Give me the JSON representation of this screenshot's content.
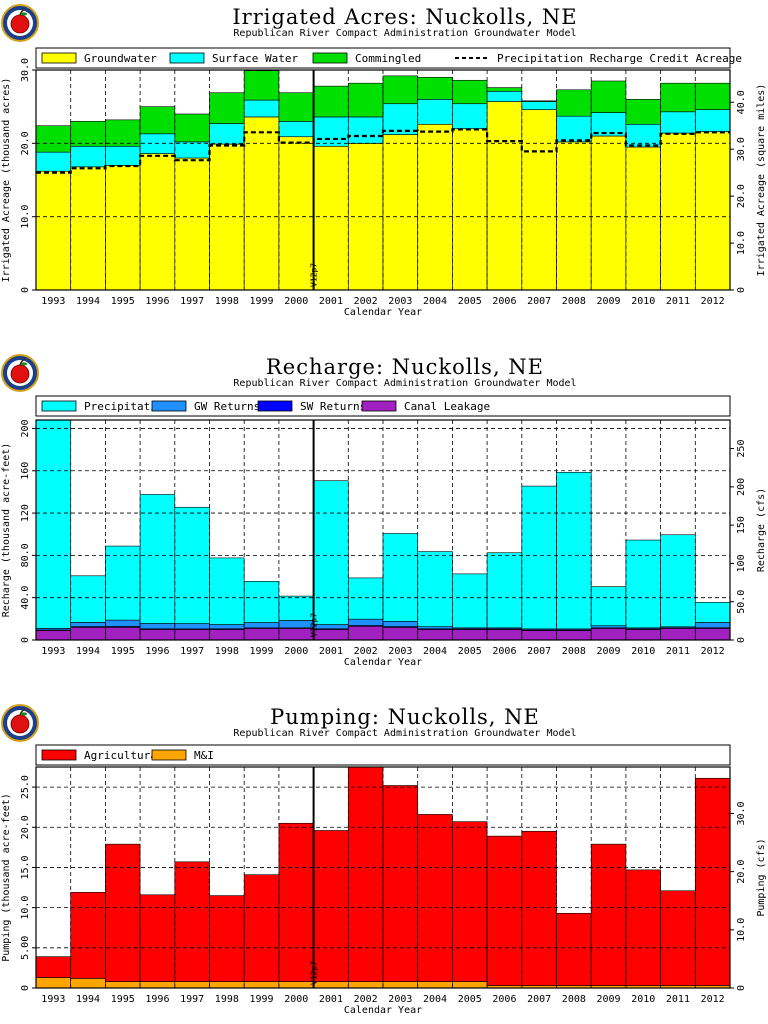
{
  "charts": [
    {
      "title": "Irrigated Acres: Nuckolls, NE",
      "subtitle": "Republican River Compact Administration Groundwater Model",
      "xlabel": "Calendar Year",
      "ylabel_left": "Irrigated Acreage (thousand acres)",
      "ylabel_right": "Irrigated Acreage (square miles)",
      "version_label": "V12p7",
      "legend": [
        "Groundwater",
        "Surface Water",
        "Commingled",
        "Precipitation Recharge Credit Acreage"
      ],
      "left_ticks": [
        "0",
        "10.0",
        "20.0",
        "30.0"
      ],
      "right_ticks": [
        "0",
        "10.0",
        "20.0",
        "30.0",
        "40.0"
      ],
      "colors": {
        "Groundwater": "#ffff00",
        "Surface Water": "#00ffff",
        "Commingled": "#00e000"
      }
    },
    {
      "title": "Recharge: Nuckolls, NE",
      "subtitle": "Republican River Compact Administration Groundwater Model",
      "xlabel": "Calendar Year",
      "ylabel_left": "Recharge (thousand acre-feet)",
      "ylabel_right": "Recharge (cfs)",
      "version_label": "V12p7",
      "legend": [
        "Precipitation",
        "GW Returns",
        "SW Returns",
        "Canal Leakage"
      ],
      "left_ticks": [
        "0",
        "40.0",
        "80.0",
        "120",
        "160",
        "200"
      ],
      "right_ticks": [
        "0",
        "50.0",
        "100",
        "150",
        "200",
        "250"
      ],
      "colors": {
        "Precipitation": "#00ffff",
        "GW Returns": "#1e90ff",
        "SW Returns": "#0000ff",
        "Canal Leakage": "#a020c0"
      }
    },
    {
      "title": "Pumping: Nuckolls, NE",
      "subtitle": "Republican River Compact Administration Groundwater Model",
      "xlabel": "Calendar Year",
      "ylabel_left": "Pumping (thousand acre-feet)",
      "ylabel_right": "Pumping (cfs)",
      "version_label": "V12p7",
      "legend": [
        "Agricultural",
        "M&I"
      ],
      "left_ticks": [
        "0",
        "5.00",
        "10.0",
        "15.0",
        "20.0",
        "25.0"
      ],
      "right_ticks": [
        "0",
        "10.0",
        "20.0",
        "30.0"
      ],
      "colors": {
        "Agricultural": "#ff0000",
        "M&I": "#ffa500"
      }
    }
  ],
  "chart_data": [
    {
      "type": "bar",
      "stacked": true,
      "categories": [
        "1993",
        "1994",
        "1995",
        "1996",
        "1997",
        "1998",
        "1999",
        "2000",
        "2001",
        "2002",
        "2003",
        "2004",
        "2005",
        "2006",
        "2007",
        "2008",
        "2009",
        "2010",
        "2011",
        "2012"
      ],
      "ylim": [
        0,
        30.0
      ],
      "series": [
        {
          "name": "Groundwater",
          "values": [
            16.2,
            16.8,
            17.0,
            18.6,
            18.0,
            19.9,
            23.6,
            20.9,
            19.6,
            20.0,
            21.2,
            22.6,
            22.0,
            25.7,
            24.6,
            20.2,
            21.0,
            19.5,
            21.4,
            21.6
          ]
        },
        {
          "name": "Surface Water",
          "values": [
            2.6,
            2.8,
            2.6,
            2.7,
            2.2,
            2.8,
            2.3,
            2.1,
            4.0,
            3.6,
            4.2,
            3.4,
            3.4,
            1.4,
            1.1,
            3.5,
            3.2,
            3.1,
            2.9,
            3.0
          ]
        },
        {
          "name": "Commingled",
          "values": [
            3.6,
            3.4,
            3.6,
            3.7,
            3.8,
            4.2,
            4.0,
            3.9,
            4.2,
            4.6,
            3.8,
            3.0,
            3.2,
            0.5,
            0.1,
            3.6,
            4.3,
            3.4,
            3.9,
            3.6
          ]
        }
      ],
      "line": {
        "name": "Precipitation Recharge Credit Acreage",
        "values": [
          16.0,
          16.6,
          16.9,
          18.3,
          17.7,
          19.7,
          21.5,
          20.1,
          20.6,
          21.0,
          21.7,
          21.6,
          21.9,
          20.3,
          18.9,
          20.4,
          21.4,
          19.7,
          21.3,
          21.5
        ]
      }
    },
    {
      "type": "bar",
      "stacked": true,
      "categories": [
        "1993",
        "1994",
        "1995",
        "1996",
        "1997",
        "1998",
        "1999",
        "2000",
        "2001",
        "2002",
        "2003",
        "2004",
        "2005",
        "2006",
        "2007",
        "2008",
        "2009",
        "2010",
        "2011",
        "2012"
      ],
      "ylim": [
        0,
        208
      ],
      "series": [
        {
          "name": "Canal Leakage",
          "values": [
            9.0,
            12.0,
            12.0,
            10.0,
            10.0,
            10.0,
            11.0,
            11.0,
            10.0,
            13.0,
            12.0,
            10.0,
            10.0,
            10.0,
            9.0,
            9.0,
            11.0,
            10.0,
            11.0,
            11.0
          ]
        },
        {
          "name": "SW Returns",
          "values": [
            0.5,
            0.7,
            0.8,
            0.6,
            0.5,
            0.6,
            0.5,
            0.5,
            0.6,
            0.7,
            0.7,
            0.6,
            0.5,
            0.5,
            0.5,
            0.5,
            0.5,
            0.5,
            0.5,
            0.6
          ]
        },
        {
          "name": "GW Returns",
          "values": [
            1.5,
            4.0,
            6.0,
            5.0,
            5.0,
            4.0,
            5.0,
            7.0,
            4.0,
            6.0,
            5.0,
            2.0,
            1.0,
            1.0,
            1.0,
            1.0,
            2.0,
            1.0,
            1.0,
            5.0
          ]
        },
        {
          "name": "Precipitation",
          "values": [
            197,
            44,
            70,
            122,
            110,
            63,
            39,
            23,
            136,
            39,
            83,
            71,
            51,
            71,
            135,
            148,
            37,
            83,
            87,
            19
          ]
        }
      ]
    },
    {
      "type": "bar",
      "stacked": true,
      "categories": [
        "1993",
        "1994",
        "1995",
        "1996",
        "1997",
        "1998",
        "1999",
        "2000",
        "2001",
        "2002",
        "2003",
        "2004",
        "2005",
        "2006",
        "2007",
        "2008",
        "2009",
        "2010",
        "2011",
        "2012"
      ],
      "ylim": [
        0,
        27.5
      ],
      "series": [
        {
          "name": "M&I",
          "values": [
            1.3,
            1.2,
            0.8,
            0.8,
            0.8,
            0.8,
            0.8,
            0.8,
            0.8,
            0.8,
            0.8,
            0.8,
            0.8,
            0.3,
            0.3,
            0.3,
            0.3,
            0.3,
            0.3,
            0.3
          ]
        },
        {
          "name": "Agricultural",
          "values": [
            2.6,
            10.7,
            17.1,
            10.8,
            14.9,
            10.7,
            13.3,
            19.7,
            18.8,
            27.0,
            24.4,
            20.8,
            19.9,
            18.6,
            19.2,
            9.0,
            17.6,
            14.4,
            11.8,
            25.8
          ]
        }
      ]
    }
  ]
}
